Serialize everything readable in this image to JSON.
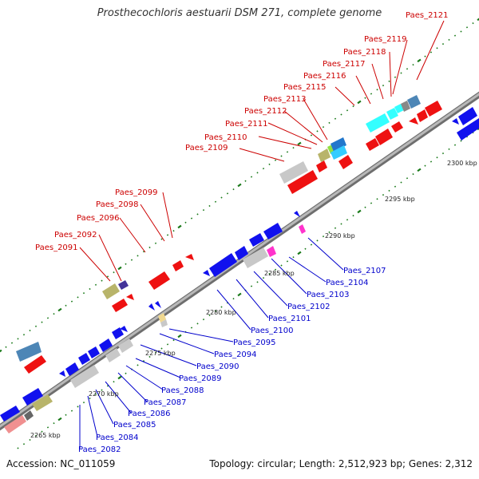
{
  "title": "Prosthecochloris aestuarii DSM 271, complete genome",
  "footer": {
    "accession": "Accession: NC_011059",
    "summary": "Topology: circular; Length: 2,512,923 bp; Genes: 2,312"
  },
  "colors": {
    "label_top": "#cc0000",
    "label_bottom": "#0000cc",
    "backbone": "#8a8a8a",
    "tick": "#1a7a1a"
  },
  "kbp_labels": [
    "2265 kbp",
    "2270 kbp",
    "2275 kbp",
    "2280 kbp",
    "2285 kbp",
    "2290 kbp",
    "2295 kbp",
    "2300 kbp"
  ],
  "top_labels": [
    "Paes_2091",
    "Paes_2092",
    "Paes_2096",
    "Paes_2098",
    "Paes_2099",
    "Paes_2109",
    "Paes_2110",
    "Paes_2111",
    "Paes_2112",
    "Paes_2113",
    "Paes_2115",
    "Paes_2116",
    "Paes_2117",
    "Paes_2118",
    "Paes_2119",
    "Paes_2121"
  ],
  "bottom_labels": [
    "Paes_2082",
    "Paes_2084",
    "Paes_2085",
    "Paes_2086",
    "Paes_2087",
    "Paes_2088",
    "Paes_2089",
    "Paes_2090",
    "Paes_2094",
    "Paes_2095",
    "Paes_2100",
    "Paes_2101",
    "Paes_2102",
    "Paes_2103",
    "Paes_2104",
    "Paes_2107"
  ]
}
